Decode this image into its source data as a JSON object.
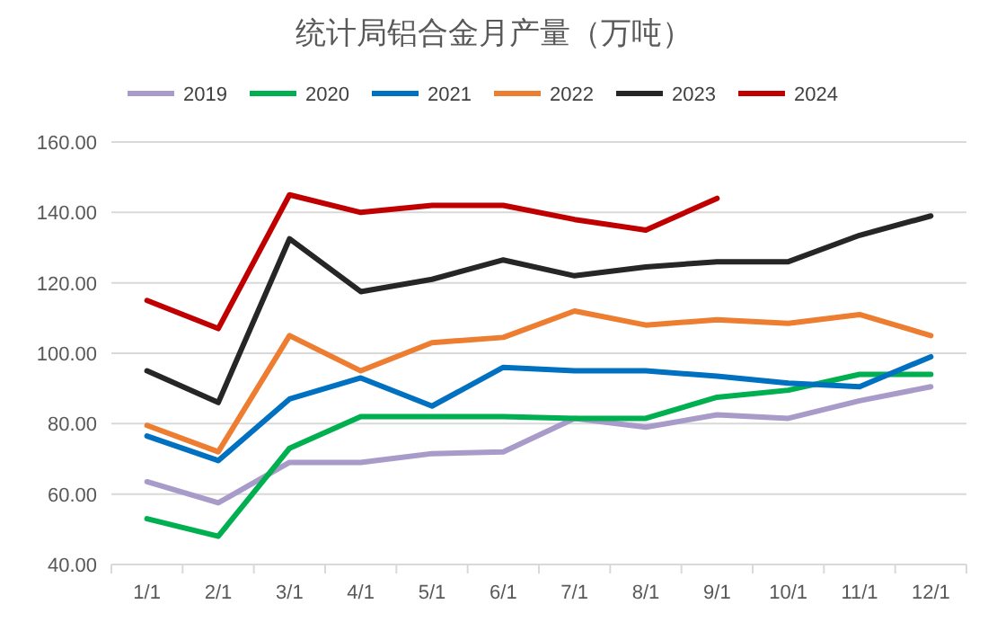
{
  "chart_data": {
    "type": "line",
    "title": "统计局铝合金月产量（万吨）",
    "categories": [
      "1/1",
      "2/1",
      "3/1",
      "4/1",
      "5/1",
      "6/1",
      "7/1",
      "8/1",
      "9/1",
      "10/1",
      "11/1",
      "12/1"
    ],
    "series": [
      {
        "name": "2019",
        "color": "#a99bc9",
        "values": [
          63.5,
          57.5,
          69,
          69,
          71.5,
          72,
          81.5,
          79,
          82.5,
          81.5,
          86.5,
          90.5
        ]
      },
      {
        "name": "2020",
        "color": "#00b050",
        "values": [
          53,
          48,
          73,
          82,
          82,
          82,
          81.5,
          81.5,
          87.5,
          89.5,
          94,
          94
        ]
      },
      {
        "name": "2021",
        "color": "#0070c0",
        "values": [
          76.5,
          69.5,
          87,
          93,
          85,
          96,
          95,
          95,
          93.5,
          91.5,
          90.5,
          99
        ]
      },
      {
        "name": "2022",
        "color": "#ed7d31",
        "values": [
          79.5,
          72,
          105,
          95,
          103,
          104.5,
          112,
          108,
          109.5,
          108.5,
          111,
          105
        ]
      },
      {
        "name": "2023",
        "color": "#262626",
        "values": [
          95,
          86,
          132.5,
          117.5,
          121,
          126.5,
          122,
          124.5,
          126,
          126,
          133.5,
          139
        ]
      },
      {
        "name": "2024",
        "color": "#c00000",
        "values": [
          115,
          107,
          145,
          140,
          142,
          142,
          138,
          135,
          144,
          null,
          null,
          null
        ]
      }
    ],
    "ylim": [
      40,
      160
    ],
    "yticks": [
      {
        "value": 40,
        "label": "40.00"
      },
      {
        "value": 60,
        "label": "60.00"
      },
      {
        "value": 80,
        "label": "80.00"
      },
      {
        "value": 100,
        "label": "100.00"
      },
      {
        "value": 120,
        "label": "120.00"
      },
      {
        "value": 140,
        "label": "140.00"
      },
      {
        "value": 160,
        "label": "160.00"
      }
    ],
    "grid": "y",
    "legend": "top",
    "marker": "none",
    "line_style": "solid"
  }
}
